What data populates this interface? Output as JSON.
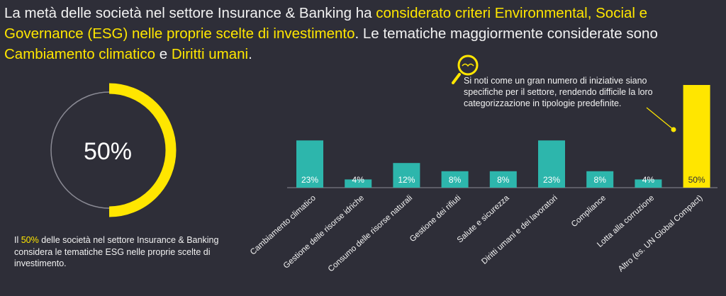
{
  "headline": {
    "p1": "La metà delle società nel settore Insurance & Banking ha ",
    "h1": "considerato criteri Environmental, Social e Governance (ESG) nelle proprie scelte di investimento",
    "p2": ". Le tematiche maggiormente considerate sono ",
    "h2": "Cambiamento climatico",
    "p3": " e ",
    "h3": "Diritti umani",
    "p4": "."
  },
  "donut": {
    "value_label": "50%",
    "fraction": 0.5,
    "color_fill": "#ffe600",
    "color_track": "#8a8a94"
  },
  "caption": {
    "p1": "Il ",
    "hl": "50%",
    "p2": " delle società nel settore Insurance & Banking considera le tematiche ESG nelle proprie scelte di investimento."
  },
  "note": {
    "text": "Si noti come un gran numero di iniziative siano specifiche per il settore, rendendo difficile la loro categorizzazione in tipologie predefinite.",
    "icon": "magnifier-icon"
  },
  "colors": {
    "teal": "#2db6ac",
    "yellow": "#ffe600",
    "background": "#2e2e38"
  },
  "chart_data": {
    "type": "bar",
    "categories": [
      "Cambiamento climatico",
      "Gestione delle risorse idriche",
      "Consumo delle risorse naturali",
      "Gestione dei rifiuti",
      "Salute e sicurezza",
      "Diritti umani e dei lavoratori",
      "Compliance",
      "Lotta alla corruzione",
      "Altro (es. UN Global Compact)"
    ],
    "values": [
      23,
      4,
      12,
      8,
      8,
      23,
      8,
      4,
      50
    ],
    "data_labels": [
      "23%",
      "4%",
      "12%",
      "8%",
      "8%",
      "23%",
      "8%",
      "4%",
      "50%"
    ],
    "bar_colors": [
      "#2db6ac",
      "#2db6ac",
      "#2db6ac",
      "#2db6ac",
      "#2db6ac",
      "#2db6ac",
      "#2db6ac",
      "#2db6ac",
      "#ffe600"
    ],
    "ylim": [
      0,
      50
    ],
    "grid": false,
    "title": "",
    "xlabel": "",
    "ylabel": ""
  }
}
